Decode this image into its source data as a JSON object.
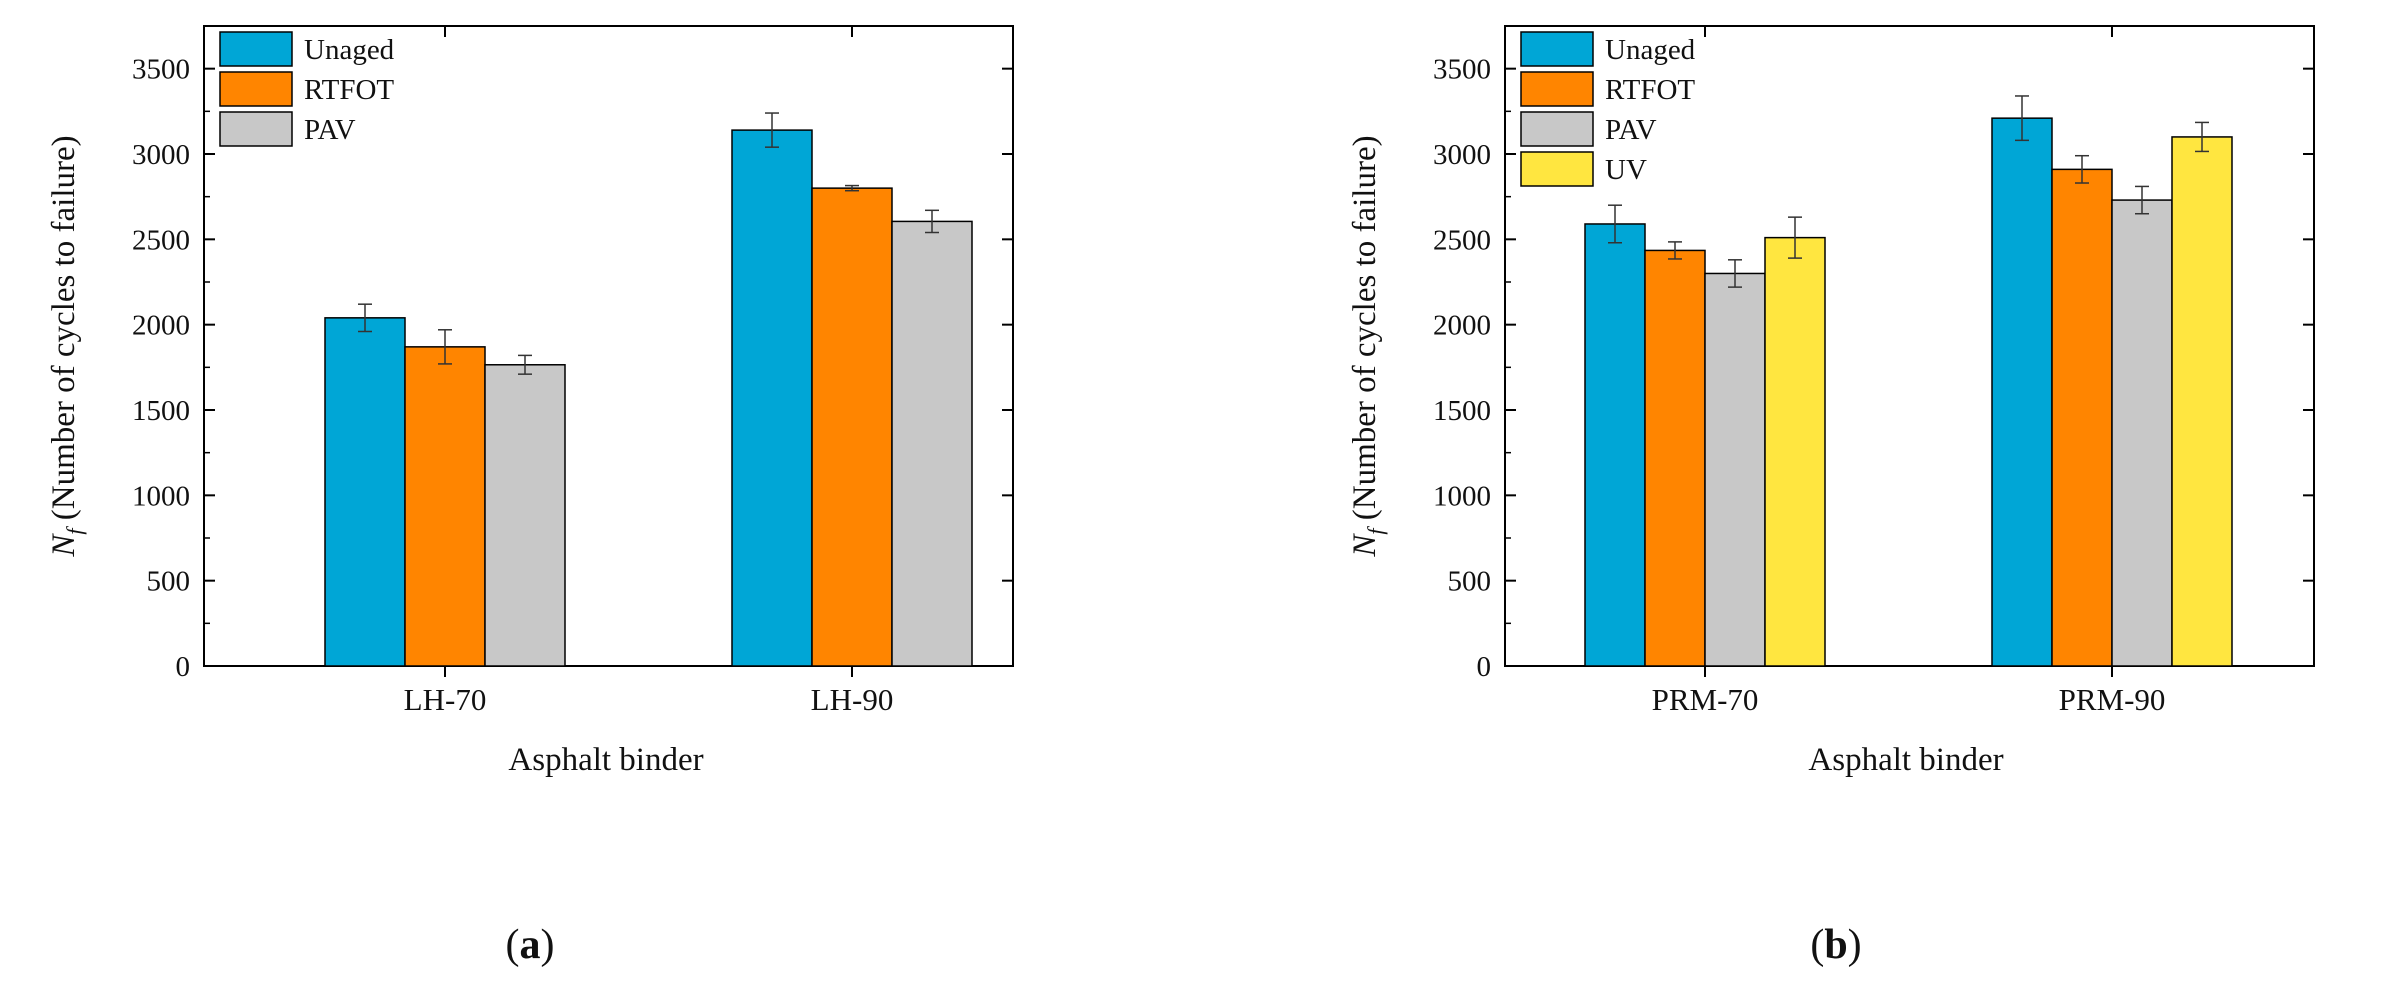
{
  "chart_data": [
    {
      "type": "bar",
      "panel_label": "a",
      "title": "",
      "xlabel": "Asphalt binder",
      "ylabel_symbol": "N",
      "ylabel_subscript": "f",
      "ylabel_text": " (Number of cycles to failure)",
      "ylim": [
        0,
        3750
      ],
      "yticks": [
        0,
        500,
        1000,
        1500,
        2000,
        2500,
        3000,
        3500
      ],
      "legend_position": "top-left",
      "categories": [
        "LH-70",
        "LH-90"
      ],
      "series": [
        {
          "name": "Unaged",
          "color": "#00a6d6",
          "values": [
            2040,
            3140
          ],
          "errors": [
            80,
            100
          ]
        },
        {
          "name": "RTFOT",
          "color": "#ff8500",
          "values": [
            1870,
            2800
          ],
          "errors": [
            100,
            15
          ]
        },
        {
          "name": "PAV",
          "color": "#c8c8c8",
          "values": [
            1765,
            2605
          ],
          "errors": [
            55,
            65
          ]
        }
      ]
    },
    {
      "type": "bar",
      "panel_label": "b",
      "title": "",
      "xlabel": "Asphalt binder",
      "ylabel_symbol": "N",
      "ylabel_subscript": "f",
      "ylabel_text": " (Number of cycles to failure)",
      "ylim": [
        0,
        3750
      ],
      "yticks": [
        0,
        500,
        1000,
        1500,
        2000,
        2500,
        3000,
        3500
      ],
      "legend_position": "top-left",
      "categories": [
        "PRM-70",
        "PRM-90"
      ],
      "series": [
        {
          "name": "Unaged",
          "color": "#00a6d6",
          "values": [
            2590,
            3210
          ],
          "errors": [
            110,
            130
          ]
        },
        {
          "name": "RTFOT",
          "color": "#ff8500",
          "values": [
            2435,
            2910
          ],
          "errors": [
            50,
            80
          ]
        },
        {
          "name": "PAV",
          "color": "#c8c8c8",
          "values": [
            2300,
            2730
          ],
          "errors": [
            80,
            80
          ]
        },
        {
          "name": "UV",
          "color": "#ffe640",
          "values": [
            2510,
            3100
          ],
          "errors": [
            120,
            85
          ]
        }
      ]
    }
  ]
}
